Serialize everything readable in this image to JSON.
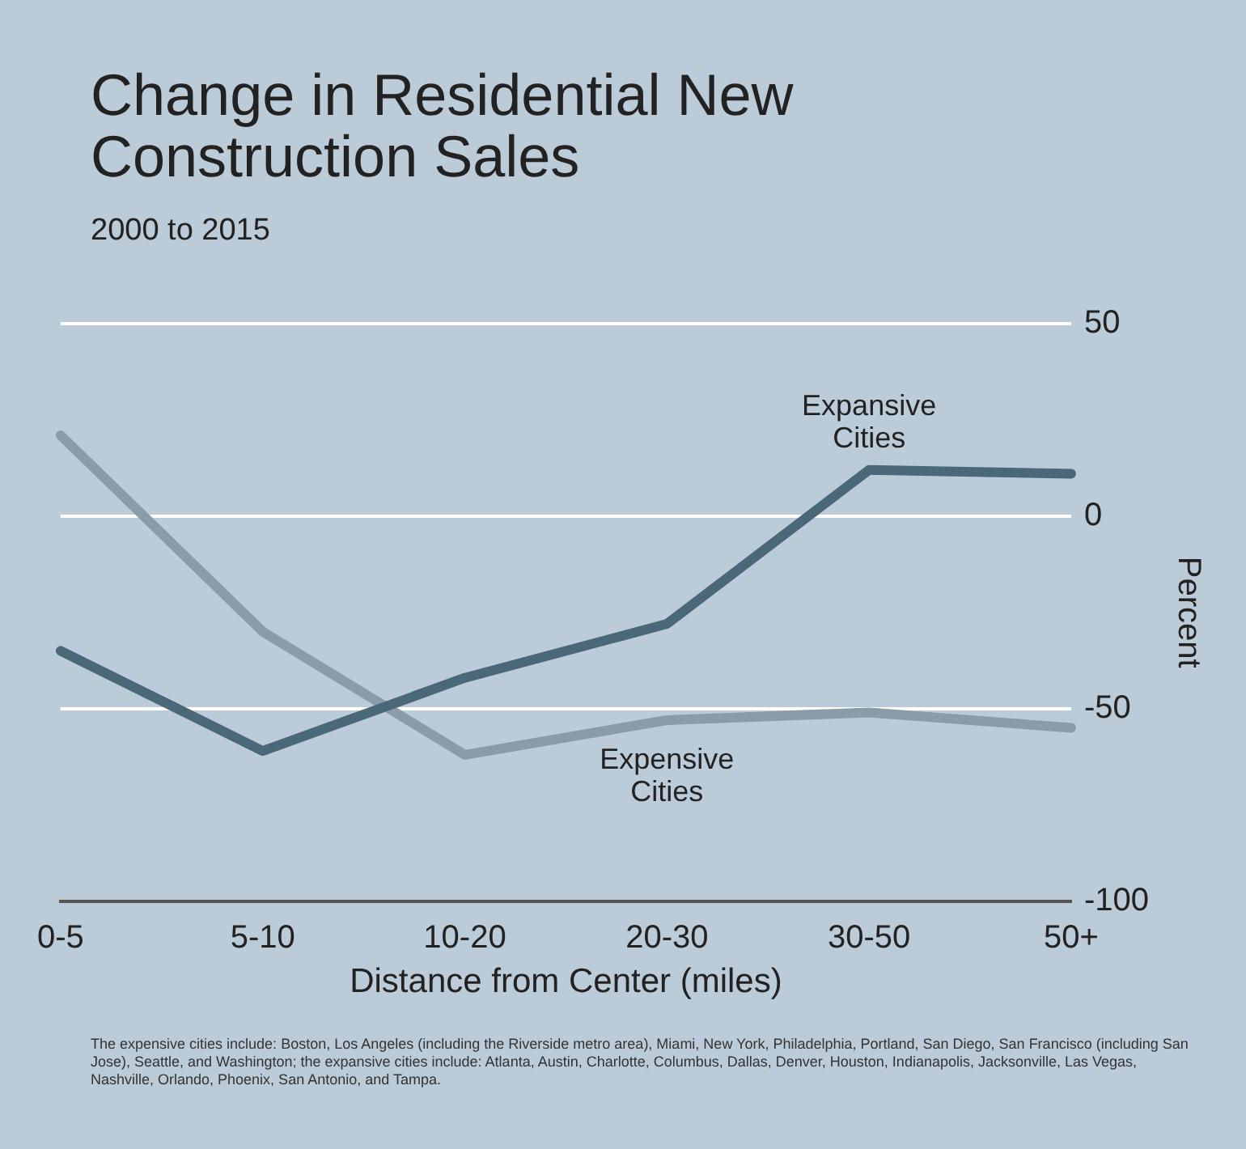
{
  "chart_data": {
    "type": "line",
    "title": "Change in Residential New Construction Sales",
    "subtitle": "2000 to 2015",
    "xlabel": "Distance from Center (miles)",
    "ylabel": "Percent",
    "categories": [
      "0-5",
      "5-10",
      "10-20",
      "20-30",
      "30-50",
      "50+"
    ],
    "series": [
      {
        "name": "Expansive Cities",
        "color": "#4a6878",
        "values": [
          -35,
          -61,
          -42,
          -28,
          12,
          11
        ]
      },
      {
        "name": "Expensive Cities",
        "color": "#8a9ca8",
        "values": [
          21,
          -30,
          -62,
          -53,
          -51,
          -55
        ]
      }
    ],
    "ylim": [
      -100,
      50
    ],
    "yticks": [
      -100,
      -50,
      0,
      50
    ],
    "grid": "y",
    "legend": false,
    "marker": "none",
    "line_style": "solid",
    "annotations": [
      "The expensive cities include: Boston, Los Angeles (including the Riverside metro area), Miami, New York, Philadelphia, Portland, San Diego, San Francisco (including San Jose), Seattle, and Washington; the expansive cities include: Atlanta, Austin, Charlotte, Columbus, Dallas, Denver, Houston, Indianapolis, Jacksonville, Las Vegas, Nashville, Orlando, Phoenix, San Antonio, and Tampa."
    ]
  }
}
